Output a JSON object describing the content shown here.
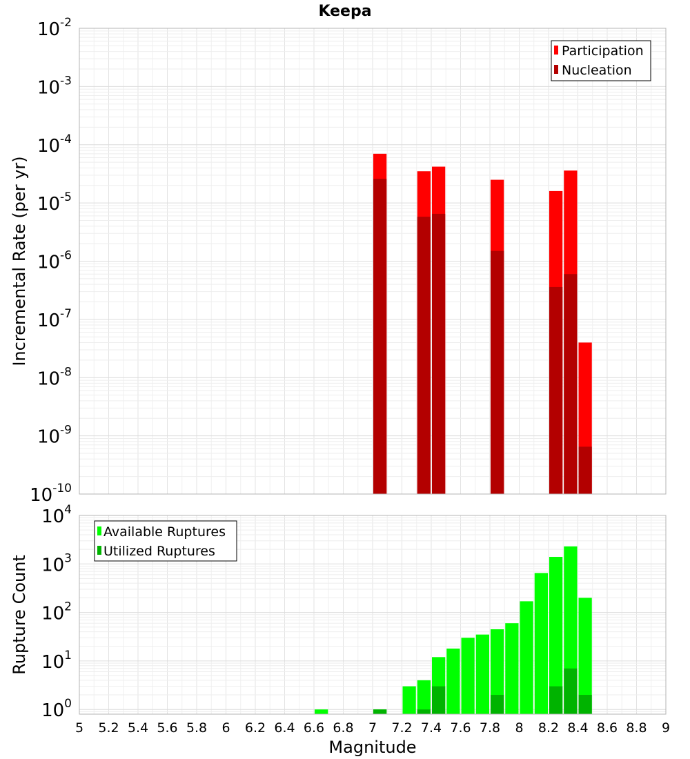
{
  "title": "Keepa",
  "chart_data": [
    {
      "type": "bar",
      "ylabel": "Incremental Rate (per yr)",
      "xlabel": "",
      "yscale": "log",
      "ylim": [
        1e-10,
        0.01
      ],
      "xlim": [
        5,
        9
      ],
      "grid": true,
      "legend_position": "top-right",
      "bar_width": 0.1,
      "overlay": true,
      "series": [
        {
          "name": "Participation",
          "color": "#ff0000",
          "x": [
            7.05,
            7.35,
            7.45,
            7.85,
            8.25,
            8.35,
            8.45
          ],
          "values": [
            7e-05,
            3.5e-05,
            4.2e-05,
            2.5e-05,
            1.6e-05,
            3.6e-05,
            4e-08
          ]
        },
        {
          "name": "Nucleation",
          "color": "#b30000",
          "x": [
            7.05,
            7.35,
            7.45,
            7.85,
            8.25,
            8.35,
            8.45
          ],
          "values": [
            2.6e-05,
            5.8e-06,
            6.5e-06,
            1.5e-06,
            3.6e-07,
            6e-07,
            6.5e-10
          ]
        }
      ]
    },
    {
      "type": "bar",
      "ylabel": "Rupture Count",
      "xlabel": "Magnitude",
      "yscale": "log",
      "ylim": [
        0.8,
        10000
      ],
      "xlim": [
        5,
        9
      ],
      "grid": true,
      "legend_position": "top-left",
      "bar_width": 0.1,
      "overlay": true,
      "x_ticks": [
        "5",
        "5.2",
        "5.4",
        "5.6",
        "5.8",
        "6",
        "6.2",
        "6.4",
        "6.6",
        "6.8",
        "7",
        "7.2",
        "7.4",
        "7.6",
        "7.8",
        "8",
        "8.2",
        "8.4",
        "8.6",
        "8.8",
        "9"
      ],
      "series": [
        {
          "name": "Available Ruptures",
          "color": "#00ff00",
          "x": [
            6.65,
            7.05,
            7.25,
            7.35,
            7.45,
            7.55,
            7.65,
            7.75,
            7.85,
            7.95,
            8.05,
            8.15,
            8.25,
            8.35,
            8.45
          ],
          "values": [
            1,
            1,
            3,
            4,
            12,
            18,
            30,
            35,
            45,
            60,
            170,
            650,
            1400,
            2300,
            200
          ]
        },
        {
          "name": "Utilized Ruptures",
          "color": "#00b300",
          "x": [
            7.05,
            7.35,
            7.45,
            7.85,
            8.25,
            8.35,
            8.45
          ],
          "values": [
            1,
            1,
            3,
            2,
            3,
            7,
            2
          ]
        }
      ]
    }
  ]
}
